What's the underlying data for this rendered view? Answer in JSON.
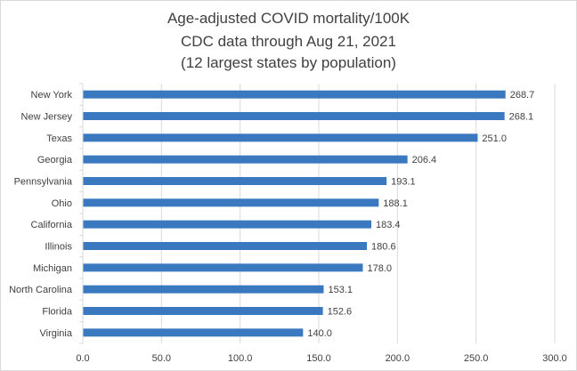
{
  "chart_data": {
    "type": "bar",
    "orientation": "horizontal",
    "title": [
      "Age-adjusted COVID mortality/100K",
      "CDC data through Aug 21, 2021",
      "(12 largest states by population)"
    ],
    "categories": [
      "New York",
      "New Jersey",
      "Texas",
      "Georgia",
      "Pennsylvania",
      "Ohio",
      "California",
      "Illinois",
      "Michigan",
      "North Carolina",
      "Florida",
      "Virginia"
    ],
    "values": [
      268.7,
      268.1,
      251.0,
      206.4,
      193.1,
      188.1,
      183.4,
      180.6,
      178.0,
      153.1,
      152.6,
      140.0
    ],
    "value_labels": [
      "268.7",
      "268.1",
      "251.0",
      "206.4",
      "193.1",
      "188.1",
      "183.4",
      "180.6",
      "178.0",
      "153.1",
      "152.6",
      "140.0"
    ],
    "x_ticks": [
      0,
      50,
      100,
      150,
      200,
      250,
      300
    ],
    "x_tick_labels": [
      "0.0",
      "50.0",
      "100.0",
      "150.0",
      "200.0",
      "250.0",
      "300.0"
    ],
    "xlim": [
      0,
      300
    ],
    "xlabel": "",
    "ylabel": "",
    "grid": true,
    "legend": "none",
    "bar_color": "#3a78c0",
    "grid_color": "#d9d9d9",
    "text_color": "#404040"
  }
}
